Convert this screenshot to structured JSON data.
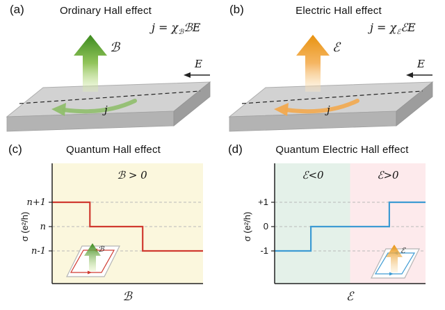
{
  "panel_a": {
    "label": "(a)",
    "title": "Ordinary Hall effect",
    "equation": {
      "lhs": "j",
      "rel": " = ",
      "chi": "χ",
      "chi_sub": "ℬ",
      "rhs": "ℬE"
    },
    "field_arrow": "ℬ",
    "efield_label": "E",
    "current_label": "j",
    "colors": {
      "arrow_top": "#3c8a1e",
      "arrow_bottom": "#dff0b8",
      "surface_current": "#8fbe6b"
    }
  },
  "panel_b": {
    "label": "(b)",
    "title": "Electric Hall effect",
    "equation": {
      "lhs": "j",
      "rel": " = ",
      "chi": "χ",
      "chi_sub": "ℰ",
      "rhs": "ℰE"
    },
    "field_arrow": "ℰ",
    "efield_label": "E",
    "current_label": "j",
    "colors": {
      "arrow_top": "#e8920f",
      "arrow_bottom": "#fbe7c4",
      "surface_current": "#f2a94e"
    }
  },
  "panel_c": {
    "label": "(c)",
    "title": "Quantum Hall effect",
    "inset_label": "ℬ",
    "colors": {
      "inset_label": "#2f7d1c",
      "inset_loop": "#d03a30"
    }
  },
  "panel_d": {
    "label": "(d)",
    "title": "Quantum Electric Hall effect",
    "inset_label": "ℰ",
    "colors": {
      "inset_label": "#e8920f",
      "inset_loop": "#3d9bd3"
    }
  },
  "chart_data": [
    {
      "id": "qhe",
      "type": "line",
      "subtype": "staircase",
      "title": "Quantum Hall effect",
      "annotation": "ℬ > 0",
      "xlabel": "ℬ",
      "ylabel": "σ (e²/h)",
      "ytick_labels": [
        "n+1",
        "n",
        "n-1"
      ],
      "line_color": "#d03a30",
      "plot_bg": "#fbf7dd",
      "steps": [
        {
          "x_start": 0.0,
          "x_end": 0.25,
          "level": "n+1"
        },
        {
          "x_start": 0.25,
          "x_end": 0.6,
          "level": "n"
        },
        {
          "x_start": 0.6,
          "x_end": 1.0,
          "level": "n-1"
        }
      ]
    },
    {
      "id": "qehe",
      "type": "line",
      "subtype": "staircase",
      "title": "Quantum Electric Hall effect",
      "regions": [
        {
          "label": "ℰ<0",
          "color": "#e4f1e9",
          "x_start": 0.0,
          "x_end": 0.5
        },
        {
          "label": "ℰ>0",
          "color": "#fdeaec",
          "x_start": 0.5,
          "x_end": 1.0
        }
      ],
      "xlabel": "ℰ",
      "ylabel": "σ (e²/h)",
      "ytick_labels": [
        "+1",
        "0",
        "-1"
      ],
      "line_color": "#3d9bd3",
      "steps": [
        {
          "x_start": 0.0,
          "x_end": 0.24,
          "level": "-1"
        },
        {
          "x_start": 0.24,
          "x_end": 0.76,
          "level": "0"
        },
        {
          "x_start": 0.76,
          "x_end": 1.0,
          "level": "+1"
        }
      ]
    }
  ]
}
